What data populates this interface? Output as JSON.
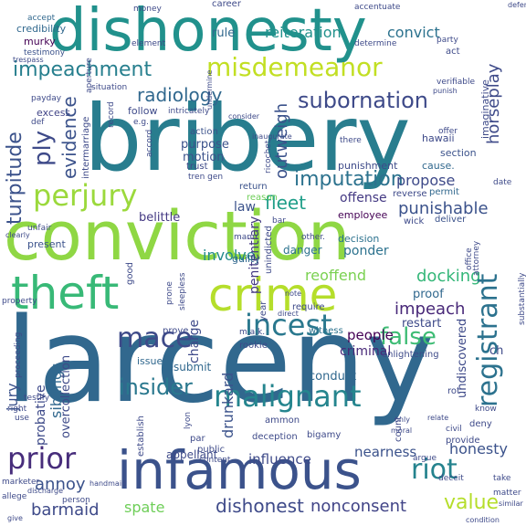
{
  "colors": {
    "background": "#ffffff",
    "palette": [
      "#440154",
      "#3b528b",
      "#2c728e",
      "#21918c",
      "#27ad81",
      "#5dc863",
      "#aadc32",
      "#fde725"
    ]
  },
  "words": {
    "larceny": "larceny",
    "bribery": "bribery",
    "conviction": "conviction",
    "dishonesty": "dishonesty",
    "infamous": "infamous",
    "theft": "theft",
    "crime": "crime",
    "misdemeanor": "misdemeanor",
    "perjury": "perjury",
    "impeachment": "impeachment",
    "registrant": "registrant",
    "incest": "incest",
    "malignant": "malignant",
    "prior": "prior",
    "riot": "riot",
    "mace": "mace",
    "false": "false",
    "subornation": "subornation",
    "radiology": "radiology",
    "imputation": "imputation",
    "ply": "ply",
    "turpitude": "turpitude",
    "evidence": "evidence",
    "fleet": "fleet",
    "punishable": "punishable",
    "insider": "insider",
    "dishonest": "dishonest",
    "nonconsent": "nonconsent",
    "value": "value",
    "barmaid": "barmaid",
    "spate": "spate",
    "annoy": "annoy",
    "impeach": "impeach",
    "docking": "docking",
    "reoffend": "reoffend",
    "honesty": "honesty",
    "horseplay": "horseplay",
    "outweigh": "outweigh",
    "reiteration": "reiteration",
    "convict": "convict",
    "propose": "propose",
    "offense": "offense",
    "penitentiary": "penitentiary",
    "drunkard": "drunkard",
    "people": "people",
    "criminal": "criminal",
    "charge": "charge",
    "jury": "jury",
    "siblings": "siblings",
    "resubmit": "resubmit",
    "involve": "involve",
    "ponder": "ponder",
    "danger": "danger",
    "law": "law",
    "purpose": "purpose",
    "motion": "motion",
    "rule": "rule",
    "murky": "murky",
    "credibility": "credibility",
    "excess": "excess",
    "belittle": "belittle",
    "present": "present",
    "probative": "probative",
    "overcollection": "overcollection",
    "appellant": "appellant",
    "influence": "influence",
    "conduct": "conduct",
    "bigamy": "bigamy",
    "nearness": "nearness",
    "deception": "deception",
    "ammon": "ammon",
    "public": "public",
    "par": "par",
    "issue": "issue",
    "undiscovered": "undiscovered",
    "restart": "restart",
    "proof": "proof",
    "punishment": "punishment",
    "imaginative": "imaginative",
    "section": "section",
    "hawaii": "hawaii",
    "cause": "cause.",
    "deliver": "deliver",
    "permit": "permit",
    "reverse": "reverse",
    "employee": "employee",
    "decision": "decision",
    "guilty": "guilty",
    "good": "good",
    "wick": "wick",
    "return": "return",
    "reason": "reason",
    "action": "action",
    "trust": "trust",
    "follow": "follow",
    "accept": "accept",
    "testimony": "testimony",
    "payday": "payday",
    "def": "def",
    "unfair": "unfair",
    "property": "property",
    "element": "element",
    "money": "money",
    "career": "career",
    "accentuate": "accentuate",
    "determine": "determine",
    "party": "party",
    "act": "act",
    "verifiable": "verifiable",
    "situation": "situation",
    "intermarriage": "intermarriage",
    "witness": "witness",
    "rookie": "rookie",
    "year": "year",
    "require": "require",
    "prove": "prove",
    "mann": "mann",
    "other": "other.",
    "unindicted": "unindicted",
    "testify": "testify",
    "right": "right",
    "use": "use",
    "marketer": "marketer",
    "allege": "allege",
    "person": "person",
    "provide": "provide",
    "deny": "deny",
    "know": "know",
    "civil": "civil",
    "count": "count",
    "argue": "argue",
    "deceit": "deceit",
    "matter": "matter",
    "take": "take",
    "enlightening": "enlightening",
    "attorney": "attorney",
    "office": "office",
    "substantially": "substantially",
    "proceeding": "proceeding",
    "establish": "establish",
    "lyon": "lyon",
    "content": "content",
    "date": "date",
    "mak": "m.a.k.",
    "bar": "bar",
    "prone": "prone",
    "sleepless": "sleepless",
    "there": "there",
    "offer": "offer",
    "clearly": "clearly",
    "record": "record",
    "consider": "consider",
    "direct": "direct",
    "aperture": "aperture",
    "trespass": "trespass",
    "eg": "e.g.",
    "intricately": "intricately",
    "accord": "accord",
    "ricochet": "ricochet",
    "note": "note",
    "only": "only",
    "moral": "moral",
    "relate": "relate",
    "similar": "similar",
    "condition": "condition",
    "give": "give",
    "defense": "defense",
    "rot": "rot",
    "ch": "ch",
    "discharge": "discharge",
    "handmaid": "handmaid",
    "undermine": "undermine",
    "inaugurate": "inaugurate",
    "punish": "punish",
    "tren": "tren gen"
  }
}
